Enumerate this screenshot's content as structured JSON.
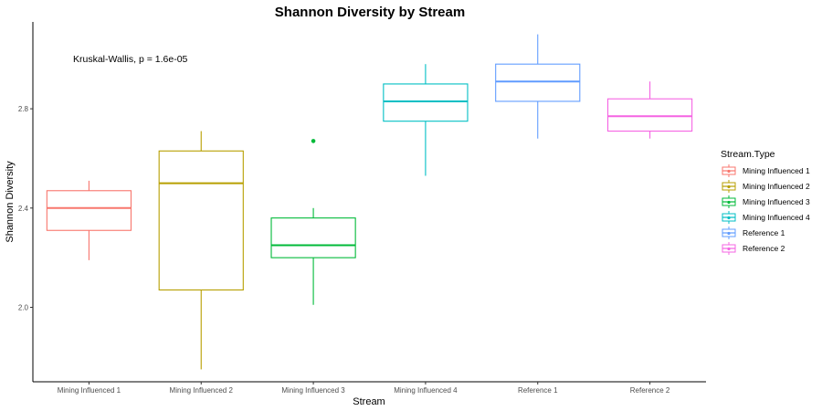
{
  "chart_data": {
    "type": "box",
    "title": "Shannon Diversity by Stream",
    "xlabel": "Stream",
    "ylabel": "Shannon Diversity",
    "annotation": "Kruskal-Wallis, p = 1.6e-05",
    "ylim": [
      1.7,
      3.15
    ],
    "yticks": [
      2.0,
      2.4,
      2.8
    ],
    "ytick_labels": [
      "2.0",
      "2.4",
      "2.8"
    ],
    "grid": false,
    "legend": {
      "title": "Stream.Type",
      "position": "right"
    },
    "categories": [
      "Mining Influenced 1",
      "Mining Influenced 2",
      "Mining Influenced 3",
      "Mining Influenced 4",
      "Reference 1",
      "Reference 2"
    ],
    "series": [
      {
        "name": "Mining Influenced 1",
        "color": "#F8766D",
        "whisker_low": 2.19,
        "q1": 2.31,
        "median": 2.4,
        "q3": 2.47,
        "whisker_high": 2.51,
        "outliers": []
      },
      {
        "name": "Mining Influenced 2",
        "color": "#B79F00",
        "whisker_low": 1.75,
        "q1": 2.07,
        "median": 2.5,
        "q3": 2.63,
        "whisker_high": 2.71,
        "outliers": []
      },
      {
        "name": "Mining Influenced 3",
        "color": "#00BA38",
        "whisker_low": 2.01,
        "q1": 2.2,
        "median": 2.25,
        "q3": 2.36,
        "whisker_high": 2.4,
        "outliers": [
          2.67
        ]
      },
      {
        "name": "Mining Influenced 4",
        "color": "#00BFC4",
        "whisker_low": 2.53,
        "q1": 2.75,
        "median": 2.83,
        "q3": 2.9,
        "whisker_high": 2.98,
        "outliers": []
      },
      {
        "name": "Reference 1",
        "color": "#619CFF",
        "whisker_low": 2.68,
        "q1": 2.83,
        "median": 2.91,
        "q3": 2.98,
        "whisker_high": 3.1,
        "outliers": []
      },
      {
        "name": "Reference 2",
        "color": "#F564E3",
        "whisker_low": 2.68,
        "q1": 2.71,
        "median": 2.77,
        "q3": 2.84,
        "whisker_high": 2.91,
        "outliers": []
      }
    ]
  }
}
